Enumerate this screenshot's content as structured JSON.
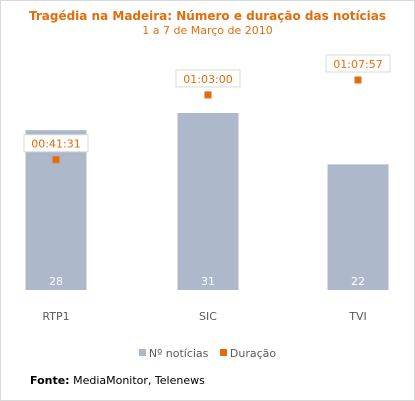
{
  "chart_data": {
    "type": "bar",
    "title": "Tragédia na Madeira: Número e duração das notícias",
    "subtitle": "1 a 7 de Março de 2010",
    "categories": [
      "RTP1",
      "SIC",
      "TVI"
    ],
    "series": [
      {
        "name": "Nº notícias",
        "type": "bar",
        "values": [
          28,
          31,
          22
        ],
        "value_labels": [
          "28",
          "31",
          "22"
        ]
      },
      {
        "name": "Duração",
        "type": "scatter",
        "values": [
          "00:41:31",
          "01:03:00",
          "01:07:57"
        ],
        "value_labels": [
          "00:41:31",
          "01:03:00",
          "01:07:57"
        ]
      }
    ],
    "colors": {
      "bar": "#adb9ca",
      "marker": "#e46c0a",
      "text": "#595959"
    },
    "grid": false,
    "legend_position": "bottom"
  },
  "source": {
    "label": "Fonte:",
    "text": "MediaMonitor, Telenews"
  }
}
